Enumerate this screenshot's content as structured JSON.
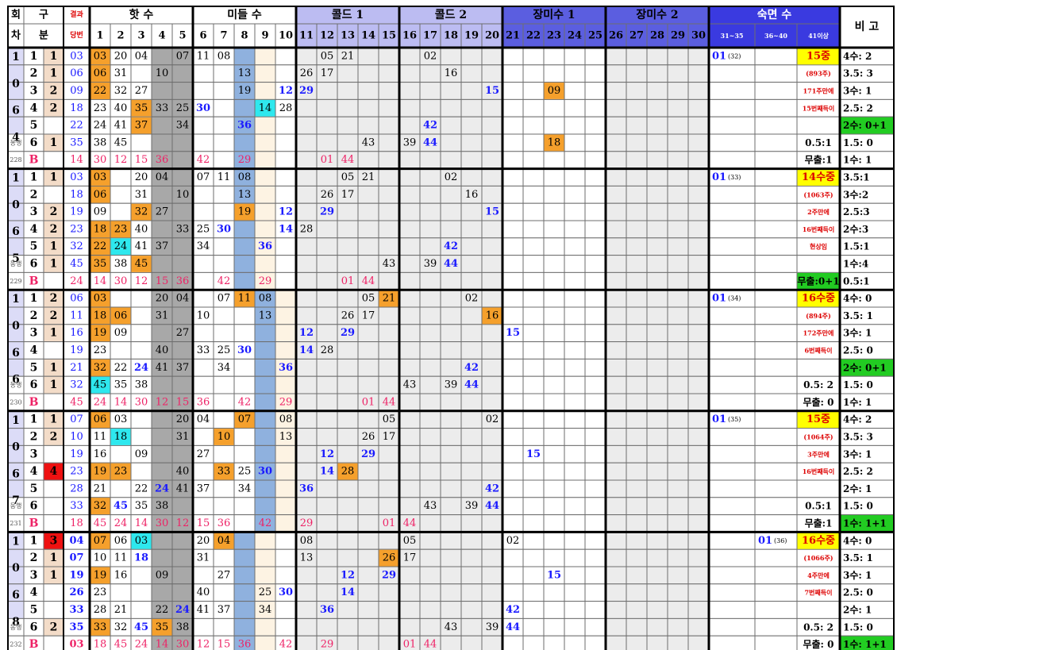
{
  "header": {
    "row1": {
      "hoe": "회",
      "gu": "구",
      "gyeol": "결과"
    },
    "row2": {
      "cha": "차",
      "bun": "분",
      "dang": "당번"
    },
    "groups": [
      {
        "label": "핫 수",
        "from": 1,
        "to": 5
      },
      {
        "label": "미들 수",
        "from": 6,
        "to": 10
      },
      {
        "label": "콜드 1",
        "from": 11,
        "to": 15
      },
      {
        "label": "콜드 2",
        "from": 16,
        "to": 20
      },
      {
        "label": "장미수 1",
        "from": 21,
        "to": 25
      },
      {
        "label": "장미수 2",
        "from": 26,
        "to": 30
      },
      {
        "label": "숙면 수",
        "from": 31,
        "to": 33
      }
    ],
    "nums": [
      "1",
      "2",
      "3",
      "4",
      "5",
      "6",
      "7",
      "8",
      "9",
      "10",
      "11",
      "12",
      "13",
      "14",
      "15",
      "16",
      "17",
      "18",
      "19",
      "20",
      "21",
      "22",
      "23",
      "24",
      "25",
      "26",
      "27",
      "28",
      "29",
      "30",
      "31~35",
      "36~40",
      "41이상"
    ],
    "remark": "비 고"
  },
  "blocks": [
    {
      "digits": [
        "1",
        "0",
        "6",
        "4"
      ],
      "bong": "동행",
      "id": "228",
      "rows": [
        {
          "g1": "1",
          "g2": "1",
          "res": "03",
          "c": {
            "1": "03",
            "2": "20",
            "3": "04",
            "5": "07",
            "6": "11",
            "7": "08",
            "12": "05",
            "13": "21",
            "17": "02",
            "31": "01",
            "31s": "(32)",
            "33": "15중"
          },
          "rm": "4수: 2"
        },
        {
          "g1": "2",
          "g2": "1",
          "res": "06",
          "c": {
            "1": "06",
            "2": "31",
            "4": "10",
            "8": "13",
            "11": "26",
            "12": "17",
            "18": "16",
            "33": "(893주)"
          },
          "rm": "3.5: 3"
        },
        {
          "g1": "3",
          "g2": "2",
          "res": "09",
          "c": {
            "1": "22",
            "2": "32",
            "3": "27",
            "8": "19",
            "10": "12",
            "11": "29",
            "20": "15",
            "23": "09",
            "33": "171주만에"
          },
          "rm": "3수: 1"
        },
        {
          "g1": "4",
          "g2": "2",
          "res": "18",
          "c": {
            "1": "23",
            "2": "40",
            "3": "35",
            "4": "33",
            "5": "25",
            "6": "30",
            "9": "14",
            "10": "28",
            "33": "15번째득이"
          },
          "rm": "2.5: 2"
        },
        {
          "g1": "5",
          "g2": "",
          "res": "22",
          "c": {
            "1": "24",
            "2": "41",
            "3": "37",
            "5": "34",
            "8": "36",
            "17": "42"
          },
          "rm": "2수: 0+1"
        },
        {
          "g1": "6",
          "g2": "1",
          "res": "35",
          "c": {
            "1": "38",
            "2": "45",
            "14": "43",
            "16": "39",
            "17": "44",
            "23": "18",
            "33": "0.5:1"
          },
          "rm": "1.5: 0"
        },
        {
          "g1": "B",
          "g2": "",
          "res": "14",
          "c": {
            "1": "30",
            "2": "12",
            "3": "15",
            "4": "36",
            "6": "42",
            "8": "29",
            "12": "01",
            "13": "44",
            "33": "무출:1"
          },
          "rm": "1수: 1"
        }
      ]
    },
    {
      "digits": [
        "1",
        "0",
        "6",
        "5"
      ],
      "bong": "동행",
      "id": "229",
      "rows": [
        {
          "g1": "1",
          "g2": "1",
          "res": "03",
          "c": {
            "1": "03",
            "3": "20",
            "4": "04",
            "6": "07",
            "7": "11",
            "8": "08",
            "13": "05",
            "14": "21",
            "18": "02",
            "31": "01",
            "31s": "(33)",
            "33": "14수중"
          },
          "rm": "3.5:1"
        },
        {
          "g1": "2",
          "g2": "",
          "res": "18",
          "c": {
            "1": "06",
            "3": "31",
            "5": "10",
            "8": "13",
            "12": "26",
            "13": "17",
            "19": "16",
            "33": "(1063주)"
          },
          "rm": "3수:2"
        },
        {
          "g1": "3",
          "g2": "2",
          "res": "19",
          "c": {
            "1": "09",
            "3": "32",
            "4": "27",
            "8": "19",
            "10": "12",
            "12": "29",
            "20": "15",
            "33": "2주만에"
          },
          "rm": "2.5:3"
        },
        {
          "g1": "4",
          "g2": "2",
          "res": "23",
          "c": {
            "1": "18",
            "2": "23",
            "3": "40",
            "5": "33",
            "6": "25",
            "7": "30",
            "10": "14",
            "11": "28",
            "33": "16번째득이"
          },
          "rm": "2수:3"
        },
        {
          "g1": "5",
          "g2": "1",
          "res": "32",
          "c": {
            "1": "22",
            "2": "24",
            "3": "41",
            "4": "37",
            "6": "34",
            "9": "36",
            "18": "42",
            "33": "현상임"
          },
          "rm": "1.5:1"
        },
        {
          "g1": "6",
          "g2": "1",
          "res": "45",
          "c": {
            "1": "35",
            "2": "38",
            "3": "45",
            "15": "43",
            "17": "39",
            "18": "44"
          },
          "rm": "1수:4"
        },
        {
          "g1": "B",
          "g2": "",
          "res": "24",
          "c": {
            "1": "14",
            "2": "30",
            "3": "12",
            "4": "15",
            "5": "36",
            "7": "42",
            "9": "29",
            "13": "01",
            "14": "44",
            "33": "무출:0+1"
          },
          "rm": "0.5:1"
        }
      ]
    },
    {
      "digits": [
        "1",
        "0",
        "6",
        "6"
      ],
      "bong": "동행",
      "id": "230",
      "rows": [
        {
          "g1": "1",
          "g2": "2",
          "res": "06",
          "c": {
            "1": "03",
            "4": "20",
            "5": "04",
            "7": "07",
            "8": "11",
            "9": "08",
            "14": "05",
            "15": "21",
            "19": "02",
            "31": "01",
            "31s": "(34)",
            "33": "16수중"
          },
          "rm": "4수: 0"
        },
        {
          "g1": "2",
          "g2": "2",
          "res": "11",
          "c": {
            "1": "18",
            "2": "06",
            "4": "31",
            "6": "10",
            "9": "13",
            "13": "26",
            "14": "17",
            "20": "16",
            "33": "(894주)"
          },
          "rm": "3.5: 1"
        },
        {
          "g1": "3",
          "g2": "1",
          "res": "16",
          "c": {
            "1": "19",
            "2": "09",
            "5": "27",
            "11": "12",
            "13": "29",
            "21": "15",
            "33": "172주만에"
          },
          "rm": "3수: 1"
        },
        {
          "g1": "4",
          "g2": "",
          "res": "19",
          "c": {
            "1": "23",
            "4": "40",
            "6": "33",
            "7": "25",
            "8": "30",
            "11": "14",
            "12": "28",
            "33": "6번째득이"
          },
          "rm": "2.5: 0"
        },
        {
          "g1": "5",
          "g2": "1",
          "res": "21",
          "c": {
            "1": "32",
            "2": "22",
            "3": "24",
            "4": "41",
            "5": "37",
            "7": "34",
            "10": "36",
            "19": "42"
          },
          "rm": "2수: 0+1"
        },
        {
          "g1": "6",
          "g2": "1",
          "res": "32",
          "c": {
            "1": "45",
            "2": "35",
            "3": "38",
            "16": "43",
            "18": "39",
            "19": "44",
            "33": "0.5: 2"
          },
          "rm": "1.5: 0"
        },
        {
          "g1": "B",
          "g2": "",
          "res": "45",
          "c": {
            "1": "24",
            "2": "14",
            "3": "30",
            "4": "12",
            "5": "15",
            "6": "36",
            "8": "42",
            "10": "29",
            "14": "01",
            "15": "44",
            "33": "무출: 0"
          },
          "rm": "1수: 1"
        }
      ]
    },
    {
      "digits": [
        "1",
        "0",
        "6",
        "7"
      ],
      "bong": "동행",
      "id": "231",
      "rows": [
        {
          "g1": "1",
          "g2": "1",
          "res": "07",
          "c": {
            "1": "06",
            "2": "03",
            "5": "20",
            "6": "04",
            "8": "07",
            "10": "08",
            "15": "05",
            "20": "02",
            "31": "01",
            "31s": "(35)",
            "33": "15중"
          },
          "rm": "4수: 2"
        },
        {
          "g1": "2",
          "g2": "2",
          "res": "10",
          "c": {
            "1": "11",
            "2": "18",
            "5": "31",
            "7": "10",
            "10": "13",
            "14": "26",
            "15": "17",
            "33": "(1064주)"
          },
          "rm": "3.5: 3"
        },
        {
          "g1": "3",
          "g2": "",
          "res": "19",
          "c": {
            "1": "16",
            "3": "09",
            "6": "27",
            "12": "12",
            "14": "29",
            "22": "15",
            "33": "3주만에"
          },
          "rm": "3수: 1"
        },
        {
          "g1": "4",
          "g2": "4",
          "res": "23",
          "c": {
            "1": "19",
            "2": "23",
            "5": "40",
            "7": "33",
            "8": "25",
            "9": "30",
            "12": "14",
            "13": "28",
            "33": "16번째득이"
          },
          "rm": "2.5: 2"
        },
        {
          "g1": "5",
          "g2": "",
          "res": "28",
          "c": {
            "1": "21",
            "3": "22",
            "4": "24",
            "5": "41",
            "6": "37",
            "8": "34",
            "11": "36",
            "20": "42"
          },
          "rm": "2수: 1"
        },
        {
          "g1": "6",
          "g2": "",
          "res": "33",
          "c": {
            "1": "32",
            "2": "45",
            "3": "35",
            "4": "38",
            "17": "43",
            "19": "39",
            "20": "44",
            "33": "0.5:1"
          },
          "rm": "1.5: 0"
        },
        {
          "g1": "B",
          "g2": "",
          "res": "18",
          "c": {
            "1": "45",
            "2": "24",
            "3": "14",
            "4": "30",
            "5": "12",
            "6": "15",
            "7": "36",
            "9": "42",
            "11": "29",
            "15": "01",
            "16": "44",
            "33": "무출:1"
          },
          "rm": "1수: 1+1"
        }
      ]
    },
    {
      "digits": [
        "1",
        "0",
        "6",
        "8"
      ],
      "bong": "동행",
      "id": "232",
      "rows": [
        {
          "g1": "1",
          "g2": "3",
          "res": "04",
          "c": {
            "1": "07",
            "2": "06",
            "3": "03",
            "6": "20",
            "7": "04",
            "11": "08",
            "16": "05",
            "21": "02",
            "32": "01",
            "32s": "(36)",
            "33": "16수중"
          },
          "rm": "4수: 0"
        },
        {
          "g1": "2",
          "g2": "1",
          "res": "07",
          "c": {
            "1": "10",
            "2": "11",
            "3": "18",
            "6": "31",
            "11": "13",
            "15": "26",
            "16": "17",
            "33": "(1066주)"
          },
          "rm": "3.5: 1"
        },
        {
          "g1": "3",
          "g2": "1",
          "res": "19",
          "c": {
            "1": "19",
            "2": "16",
            "4": "09",
            "7": "27",
            "13": "12",
            "15": "29",
            "23": "15",
            "33": "4주만에"
          },
          "rm": "3수: 1"
        },
        {
          "g1": "4",
          "g2": "",
          "res": "26",
          "c": {
            "1": "23",
            "6": "40",
            "9": "25",
            "10": "30",
            "13": "14",
            "33": "7번째득이"
          },
          "rm": "2.5: 0"
        },
        {
          "g1": "5",
          "g2": "",
          "res": "33",
          "c": {
            "1": "28",
            "2": "21",
            "4": "22",
            "5": "24",
            "6": "41",
            "7": "37",
            "9": "34",
            "12": "36",
            "21": "42"
          },
          "rm": "2수: 1"
        },
        {
          "g1": "6",
          "g2": "2",
          "res": "35",
          "c": {
            "1": "33",
            "2": "32",
            "3": "45",
            "4": "35",
            "5": "38",
            "18": "43",
            "20": "39",
            "21": "44",
            "33": "0.5: 2"
          },
          "rm": "1.5: 0"
        },
        {
          "g1": "B",
          "g2": "",
          "res": "03",
          "c": {
            "1": "18",
            "2": "45",
            "3": "24",
            "4": "14",
            "5": "30",
            "6": "12",
            "7": "15",
            "8": "36",
            "10": "42",
            "12": "29",
            "16": "01",
            "17": "44",
            "33": "무출: 0"
          },
          "rm": "1수: 1+1"
        }
      ]
    }
  ],
  "colors": {
    "orange": "#f5a02c",
    "cyan": "#2ee8ee",
    "red": "#ee1111",
    "green": "#22cc22",
    "yellow": "#ffff00",
    "gray": "#a8a8a8",
    "blueCol": "#8fb1de",
    "ltgray": "#ececec",
    "hdrBlue": "#5b5ee0",
    "hdrLilac": "#bcbcf2",
    "hdrPink": "#f5d8c8",
    "peach": "#fdf3e3",
    "blueText": "#1a1aff",
    "pinkText": "#ee2266",
    "redText": "#dd0000"
  }
}
